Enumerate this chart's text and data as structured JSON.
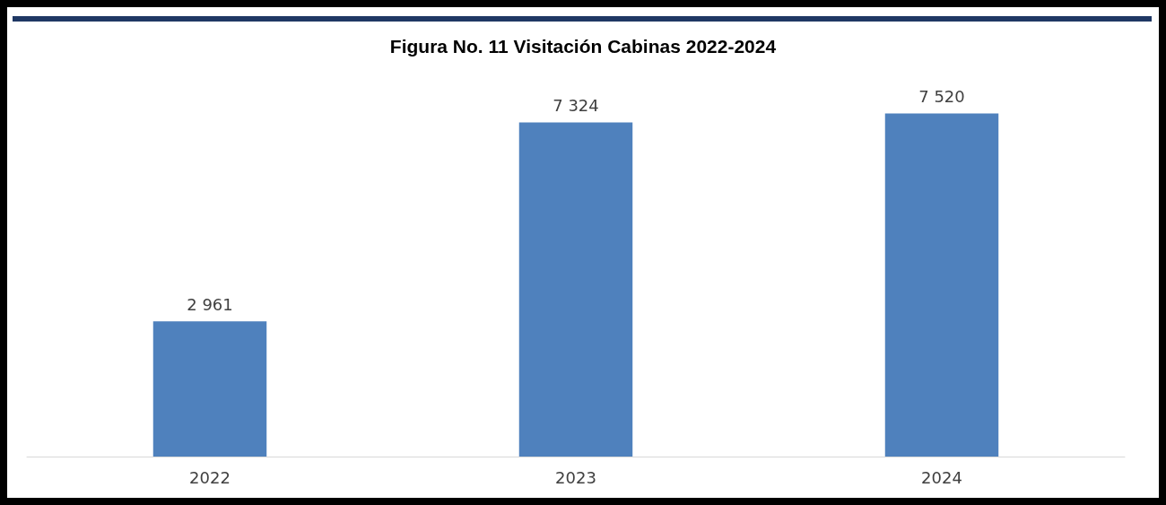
{
  "chart_data": {
    "type": "bar",
    "title": "Figura No. 11 Visitación Cabinas 2022-2024",
    "categories": [
      "2022",
      "2023",
      "2024"
    ],
    "values": [
      2961,
      7324,
      7520
    ],
    "value_labels": [
      "2 961",
      "7 324",
      "7 520"
    ],
    "color": "#4f81bd"
  }
}
